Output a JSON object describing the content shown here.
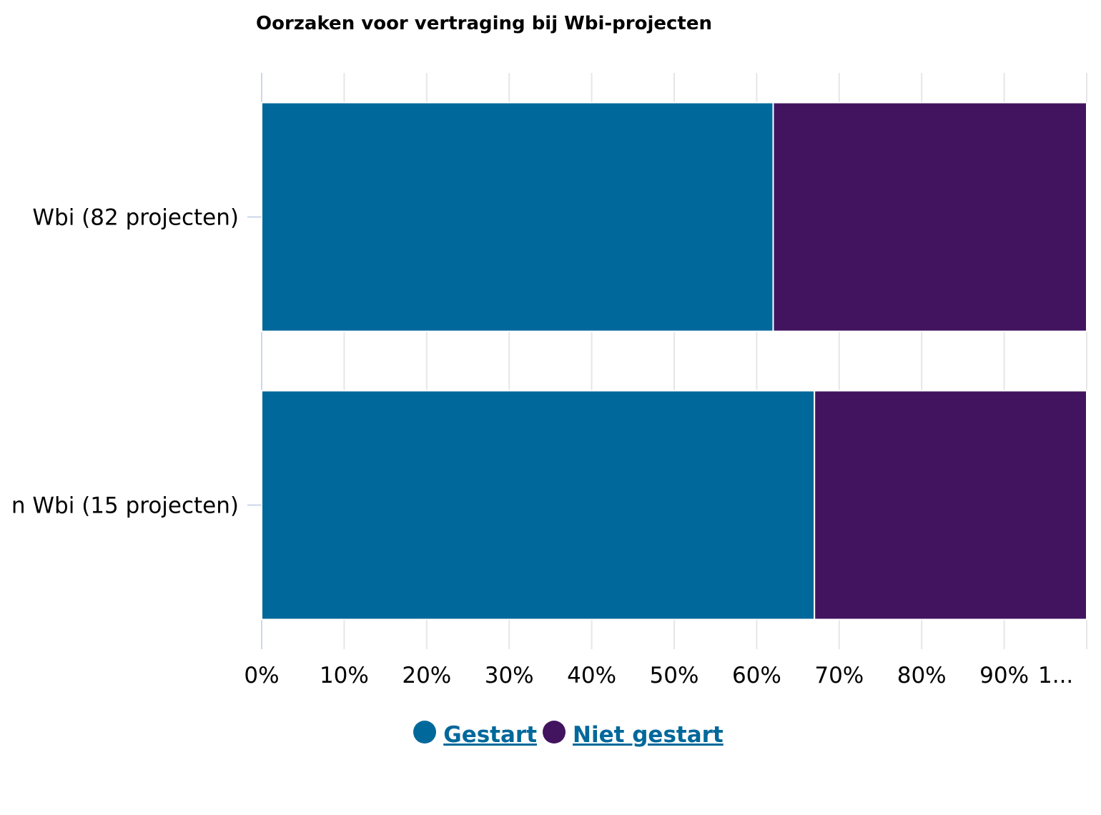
{
  "chart_data": {
    "type": "bar",
    "orientation": "horizontal",
    "stacked": true,
    "title": "Oorzaken voor vertraging bij Wbi-projecten",
    "categories": [
      "Wbi (82 projecten)",
      "n Wbi (15 projecten)"
    ],
    "series": [
      {
        "name": "Gestart",
        "color": "#01689b",
        "values": [
          62,
          67
        ]
      },
      {
        "name": "Niet gestart",
        "color": "#42145f",
        "values": [
          38,
          33
        ]
      }
    ],
    "x_ticks": [
      "0%",
      "10%",
      "20%",
      "30%",
      "40%",
      "50%",
      "60%",
      "70%",
      "80%",
      "90%",
      "1..."
    ],
    "xlim": [
      0,
      100
    ],
    "grid": true,
    "legend_position": "bottom-center"
  }
}
